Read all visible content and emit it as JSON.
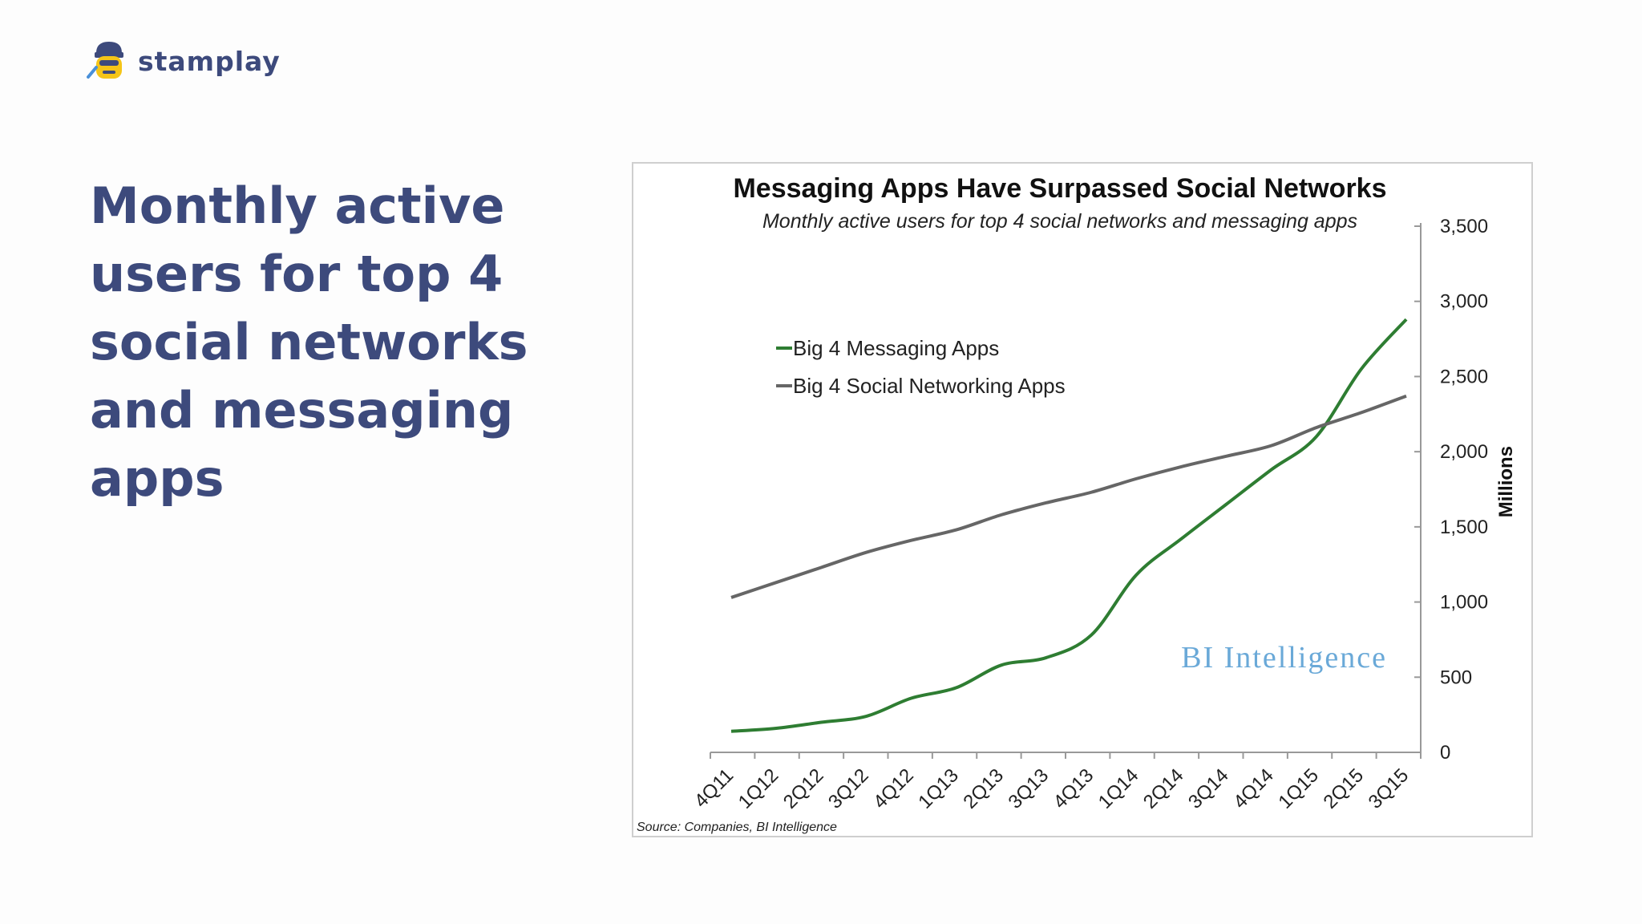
{
  "brand": {
    "name": "stamplay"
  },
  "slide": {
    "title": "Monthly active users for top 4 social networks and messaging apps"
  },
  "chart_data": {
    "type": "line",
    "title": "Messaging Apps Have Surpassed Social Networks",
    "subtitle": "Monthly active users for top 4 social networks and messaging apps",
    "ylabel": "Millions",
    "ylim": [
      0,
      3500
    ],
    "yticks": [
      "0",
      "500",
      "1,000",
      "1,500",
      "2,000",
      "2,500",
      "3,000",
      "3,500"
    ],
    "categories": [
      "4Q11",
      "1Q12",
      "2Q12",
      "3Q12",
      "4Q12",
      "1Q13",
      "2Q13",
      "3Q13",
      "4Q13",
      "1Q14",
      "2Q14",
      "3Q14",
      "4Q14",
      "1Q15",
      "2Q15",
      "3Q15"
    ],
    "series": [
      {
        "name": "Big 4 Messaging Apps",
        "color": "#2e7d32",
        "values": [
          140,
          160,
          200,
          240,
          360,
          430,
          580,
          630,
          780,
          1180,
          1420,
          1650,
          1880,
          2100,
          2550,
          2880
        ]
      },
      {
        "name": "Big 4 Social Networking Apps",
        "color": "#666666",
        "values": [
          1030,
          1130,
          1230,
          1330,
          1410,
          1480,
          1580,
          1660,
          1730,
          1820,
          1900,
          1970,
          2040,
          2160,
          2260,
          2370
        ]
      }
    ],
    "legend_position": "upper-left",
    "grid": false,
    "watermark": "BI Intelligence",
    "source": "Source: Companies, BI Intelligence"
  }
}
